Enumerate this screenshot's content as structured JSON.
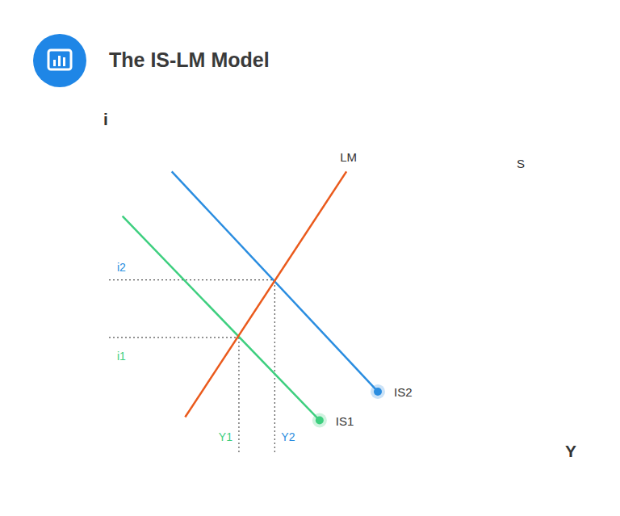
{
  "chart_data": {
    "type": "line",
    "title": "The IS-LM Model",
    "x_label": "Y",
    "y_label": "i",
    "xlim": [
      0,
      10
    ],
    "ylim": [
      0,
      10
    ],
    "tick_labels": false,
    "grid": false,
    "series": [
      {
        "name": "IS1",
        "color": "#3ecf7f",
        "marker": "circle",
        "x": [
          0.3,
          4.7
        ],
        "values": [
          7.4,
          1.0
        ]
      },
      {
        "name": "IS2",
        "color": "#2a8de0",
        "marker": "circle",
        "x": [
          1.4,
          6.0
        ],
        "values": [
          8.8,
          1.9
        ]
      },
      {
        "name": "LM",
        "color": "#ea5a1c",
        "marker": "none",
        "x": [
          1.7,
          5.3
        ],
        "values": [
          1.1,
          8.8
        ]
      }
    ],
    "equilibria": [
      {
        "x": 2.9,
        "y": 3.6,
        "x_label": "Y1",
        "y_label": "i1",
        "color": "#3ecf7f",
        "line_style": "dotted"
      },
      {
        "x": 3.7,
        "y": 5.4,
        "x_label": "Y2",
        "y_label": "i2",
        "color": "#2a8de0",
        "line_style": "dotted"
      }
    ],
    "annotations": [
      {
        "text": "S",
        "x": 9.1,
        "y": 8.9
      }
    ]
  }
}
